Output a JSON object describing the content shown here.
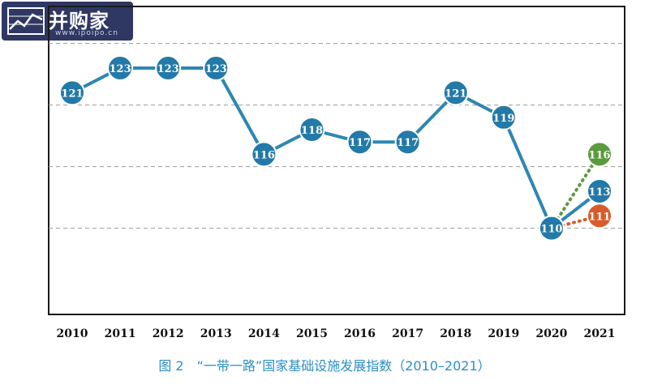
{
  "watermark": {
    "title": "并购家",
    "url": "www.ipoipo.cn",
    "icon": "bar-chart-icon"
  },
  "caption": "图 2　“一带一路”国家基础设施发展指数（2010–2021）",
  "colors": {
    "main_line": "#2e86b3",
    "marker_fill": "#2379a8",
    "optimistic": "#5b9a3e",
    "pessimistic": "#d95b2b",
    "grid": "#9a9a9a",
    "frame": "#1a1a1a"
  },
  "chart_data": {
    "type": "line",
    "title": "",
    "xlabel": "",
    "ylabel": "",
    "ylim": [
      103,
      128
    ],
    "grid": "horizontal-dashed",
    "categories": [
      "2010",
      "2011",
      "2012",
      "2013",
      "2014",
      "2015",
      "2016",
      "2017",
      "2018",
      "2019",
      "2020",
      "2021"
    ],
    "series": [
      {
        "style": "solid",
        "color": "#2e86b3",
        "values": [
          121,
          123,
          123,
          123,
          116,
          118,
          117,
          117,
          121,
          119,
          110,
          113
        ]
      },
      {
        "style": "dotted",
        "color": "#5b9a3e",
        "points": [
          [
            "2020",
            110
          ],
          [
            "2021",
            116
          ]
        ]
      },
      {
        "style": "dotted",
        "color": "#d95b2b",
        "points": [
          [
            "2020",
            110
          ],
          [
            "2021",
            111
          ]
        ]
      }
    ]
  }
}
